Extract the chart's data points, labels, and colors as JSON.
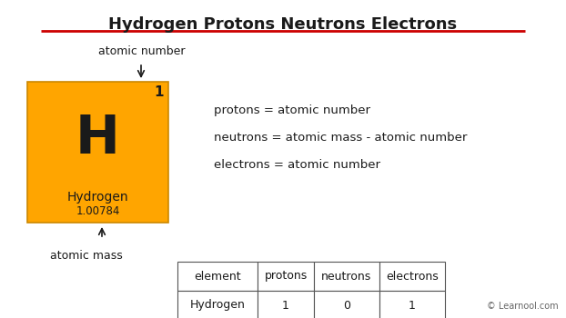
{
  "title": "Hydrogen Protons Neutrons Electrons",
  "title_fontsize": 13,
  "background_color": "#ffffff",
  "element_symbol": "H",
  "element_name": "Hydrogen",
  "atomic_number": "1",
  "atomic_mass": "1.00784",
  "box_color": "#FFA500",
  "box_edge_color": "#cc8800",
  "formula_lines": [
    "protons = atomic number",
    "neutrons = atomic mass - atomic number",
    "electrons = atomic number"
  ],
  "table_headers": [
    "element",
    "protons",
    "neutrons",
    "electrons"
  ],
  "table_row": [
    "Hydrogen",
    "1",
    "0",
    "1"
  ],
  "copyright": "© Learnool.com",
  "underline_color": "#cc0000",
  "text_color": "#1a1a1a",
  "arrow_color": "#1a1a1a"
}
